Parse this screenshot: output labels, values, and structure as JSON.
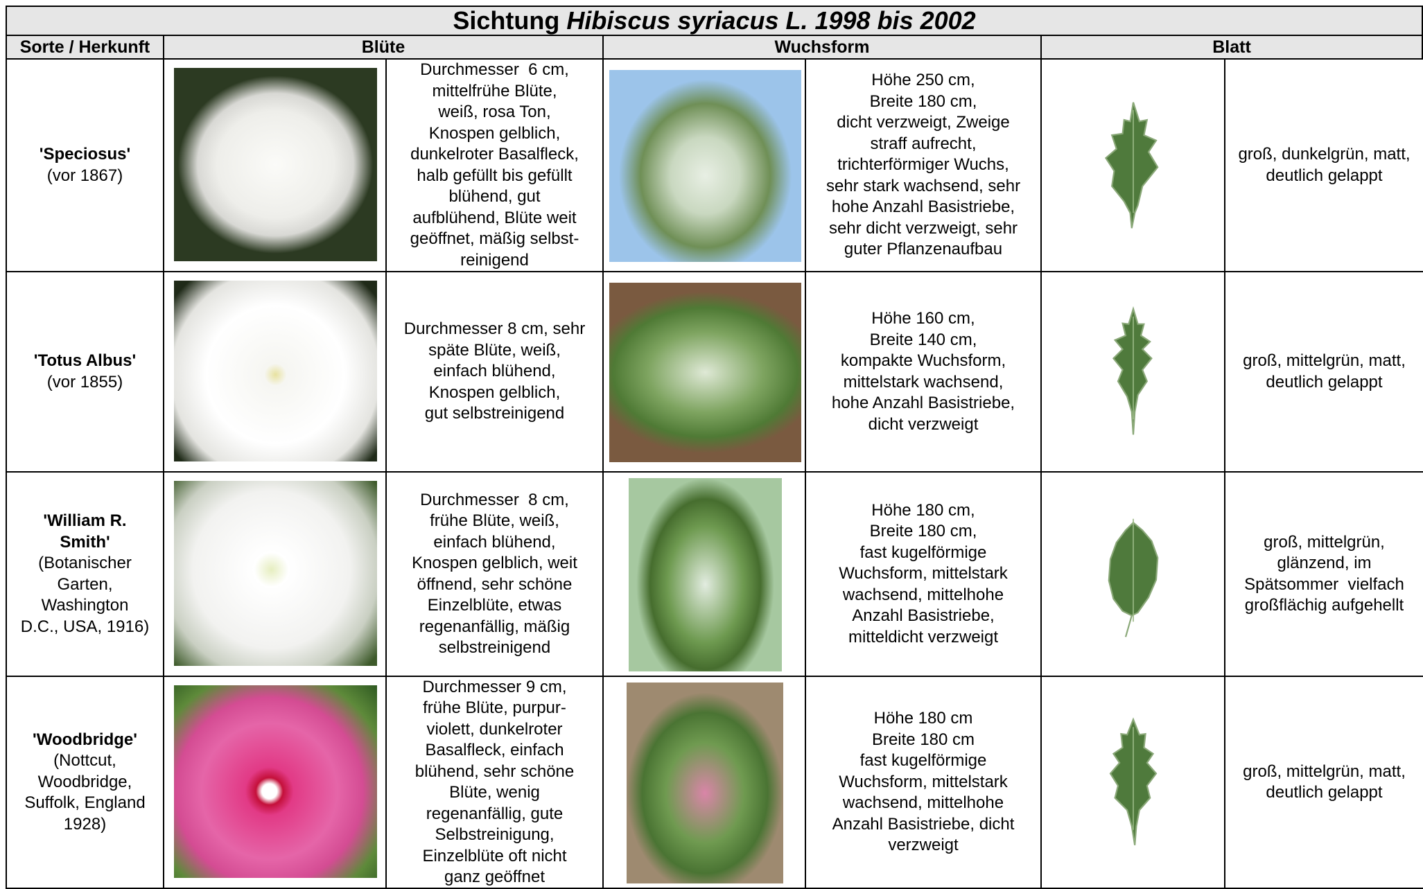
{
  "title": {
    "prefix": "Sichtung",
    "italic": "Hibiscus syriacus L. 1998 bis 2002"
  },
  "headers": [
    "Sorte / Herkunft",
    "Blüte",
    "Wuchsform",
    "Blatt"
  ],
  "rows": [
    {
      "name": [
        "'Speciosus'"
      ],
      "origin": [
        "(vor 1867)"
      ],
      "bluete": [
        "Durchmesser  6 cm,",
        "mittelfrühe Blüte,",
        "weiß, rosa Ton,",
        "Knospen gelblich,",
        "dunkelroter Basalfleck,",
        "halb gefüllt bis gefüllt",
        "blühend, gut",
        "aufblühend, Blüte weit",
        "geöffnet, mäßig selbst-",
        "reinigend"
      ],
      "wuchs": [
        "Höhe 250 cm,",
        "Breite 180 cm,",
        "dicht verzweigt, Zweige",
        "straff aufrecht,",
        "trichterförmiger Wuchs,",
        "sehr stark wachsend, sehr",
        "hohe Anzahl Basistriebe,",
        "sehr dicht verzweigt, sehr",
        "guter Pflanzenaufbau"
      ],
      "blatt": [
        "groß, dunkelgrün, matt,",
        "deutlich gelappt"
      ]
    },
    {
      "name": [
        "'Totus Albus'"
      ],
      "origin": [
        "(vor 1855)"
      ],
      "bluete": [
        "Durchmesser 8 cm, sehr",
        "späte Blüte, weiß,",
        "einfach blühend,",
        "Knospen gelblich,",
        "gut selbstreinigend"
      ],
      "wuchs": [
        "Höhe 160 cm,",
        "Breite 140 cm,",
        "kompakte Wuchsform,",
        "mittelstark wachsend,",
        "hohe Anzahl Basistriebe,",
        "dicht verzweigt"
      ],
      "blatt": [
        "groß, mittelgrün, matt,",
        "deutlich gelappt"
      ]
    },
    {
      "name": [
        "'William R.",
        "Smith'"
      ],
      "origin": [
        "(Botanischer",
        "Garten,",
        "Washington",
        "D.C., USA, 1916)"
      ],
      "bluete": [
        "Durchmesser  8 cm,",
        "frühe Blüte, weiß,",
        "einfach blühend,",
        "Knospen gelblich, weit",
        "öffnend, sehr schöne",
        "Einzelblüte, etwas",
        "regenanfällig, mäßig",
        "selbstreinigend"
      ],
      "wuchs": [
        "Höhe 180 cm,",
        "Breite 180 cm,",
        "fast kugelförmige",
        "Wuchsform, mittelstark",
        "wachsend, mittelhohe",
        "Anzahl Basistriebe,",
        "mitteldicht verzweigt"
      ],
      "blatt": [
        "groß, mittelgrün,",
        "glänzend, im",
        "Spätsommer  vielfach",
        "großflächig aufgehellt"
      ]
    },
    {
      "name": [
        "'Woodbridge'"
      ],
      "origin": [
        "(Nottcut,",
        "Woodbridge,",
        "Suffolk, England",
        "1928)"
      ],
      "bluete": [
        "Durchmesser 9 cm,",
        "frühe Blüte, purpur-",
        "violett, dunkelroter",
        "Basalfleck, einfach",
        "blühend, sehr schöne",
        "Blüte, wenig",
        "regenanfällig, gute",
        "Selbstreinigung,",
        "Einzelblüte oft nicht",
        "ganz geöffnet"
      ],
      "wuchs": [
        "Höhe 180 cm",
        "Breite 180 cm",
        "fast kugelförmige",
        "Wuchsform, mittelstark",
        "wachsend, mittelhohe",
        "Anzahl Basistriebe, dicht",
        "verzweigt"
      ],
      "blatt": [
        "groß, mittelgrün, matt,",
        "deutlich gelappt"
      ]
    }
  ]
}
